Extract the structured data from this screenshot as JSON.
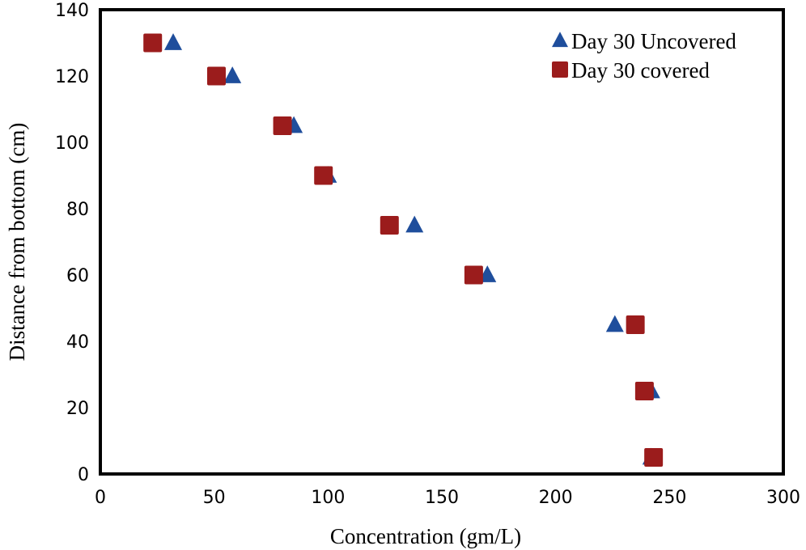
{
  "chart_data": {
    "type": "scatter",
    "title": "",
    "xlabel": "Concentration (gm/L)",
    "ylabel": "Distance from bottom (cm)",
    "xlim": [
      0,
      300
    ],
    "ylim": [
      0,
      140
    ],
    "xticks": [
      0,
      50,
      100,
      150,
      200,
      250,
      300
    ],
    "yticks": [
      0,
      20,
      40,
      60,
      80,
      100,
      120,
      140
    ],
    "grid": false,
    "legend_position": "top-right",
    "series": [
      {
        "name": "Day 30 Uncovered",
        "marker": "triangle",
        "color": "#1f4e9c",
        "points": [
          {
            "x": 32,
            "y": 130
          },
          {
            "x": 58,
            "y": 120
          },
          {
            "x": 85,
            "y": 105
          },
          {
            "x": 100,
            "y": 90
          },
          {
            "x": 138,
            "y": 75
          },
          {
            "x": 170,
            "y": 60
          },
          {
            "x": 226,
            "y": 45
          },
          {
            "x": 242,
            "y": 25
          },
          {
            "x": 242,
            "y": 5
          }
        ]
      },
      {
        "name": "Day 30 covered",
        "marker": "square",
        "color": "#9b1c1c",
        "points": [
          {
            "x": 23,
            "y": 130
          },
          {
            "x": 51,
            "y": 120
          },
          {
            "x": 80,
            "y": 105
          },
          {
            "x": 98,
            "y": 90
          },
          {
            "x": 127,
            "y": 75
          },
          {
            "x": 164,
            "y": 60
          },
          {
            "x": 235,
            "y": 45
          },
          {
            "x": 239,
            "y": 25
          },
          {
            "x": 243,
            "y": 5
          }
        ]
      }
    ]
  }
}
